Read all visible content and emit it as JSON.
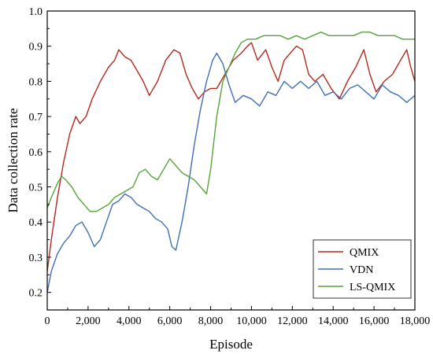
{
  "chart_data": {
    "type": "line",
    "title": "",
    "xlabel": "Episode",
    "ylabel": "Data collection rate",
    "xlim": [
      0,
      18000
    ],
    "ylim": [
      0.15,
      1.0
    ],
    "x_ticks": [
      0,
      2000,
      4000,
      6000,
      8000,
      10000,
      12000,
      14000,
      16000,
      18000
    ],
    "x_tick_labels": [
      "0",
      "2,000",
      "4,000",
      "6,000",
      "8,000",
      "10,000",
      "12,000",
      "14,000",
      "16,000",
      "18,000"
    ],
    "y_ticks": [
      0.2,
      0.3,
      0.4,
      0.5,
      0.6,
      0.7,
      0.8,
      0.9,
      1.0
    ],
    "y_tick_labels": [
      "0.2",
      "0.3",
      "0.4",
      "0.5",
      "0.6",
      "0.7",
      "0.8",
      "0.9",
      "1.0"
    ],
    "grid": false,
    "legend_position": "bottom-right",
    "series": [
      {
        "name": "QMIX",
        "color": "#b5281d",
        "x": [
          0,
          200,
          500,
          800,
          1100,
          1400,
          1600,
          1900,
          2200,
          2600,
          3000,
          3300,
          3500,
          3800,
          4100,
          4400,
          4700,
          5000,
          5400,
          5800,
          6200,
          6500,
          6800,
          7100,
          7400,
          7700,
          8000,
          8300,
          8700,
          9100,
          9500,
          9800,
          10000,
          10300,
          10700,
          11000,
          11300,
          11600,
          11900,
          12200,
          12500,
          12800,
          13100,
          13500,
          13900,
          14300,
          14700,
          15100,
          15500,
          15800,
          16100,
          16500,
          16900,
          17300,
          17600,
          17800,
          18000
        ],
        "y": [
          0.26,
          0.35,
          0.47,
          0.57,
          0.65,
          0.7,
          0.68,
          0.7,
          0.75,
          0.8,
          0.84,
          0.86,
          0.89,
          0.87,
          0.86,
          0.83,
          0.8,
          0.76,
          0.8,
          0.86,
          0.89,
          0.88,
          0.82,
          0.78,
          0.75,
          0.77,
          0.78,
          0.78,
          0.82,
          0.86,
          0.88,
          0.9,
          0.91,
          0.86,
          0.89,
          0.84,
          0.8,
          0.86,
          0.88,
          0.9,
          0.89,
          0.82,
          0.8,
          0.82,
          0.78,
          0.75,
          0.8,
          0.84,
          0.89,
          0.82,
          0.77,
          0.8,
          0.82,
          0.86,
          0.89,
          0.84,
          0.8
        ]
      },
      {
        "name": "VDN",
        "color": "#3f6fb5",
        "x": [
          0,
          200,
          500,
          800,
          1100,
          1400,
          1700,
          2000,
          2300,
          2600,
          2900,
          3200,
          3500,
          3800,
          4100,
          4400,
          4700,
          5000,
          5300,
          5600,
          5900,
          6100,
          6300,
          6600,
          6900,
          7200,
          7500,
          7800,
          8100,
          8300,
          8600,
          8900,
          9200,
          9600,
          10000,
          10400,
          10800,
          11200,
          11600,
          12000,
          12400,
          12800,
          13200,
          13600,
          14000,
          14400,
          14800,
          15200,
          15600,
          16000,
          16400,
          16800,
          17200,
          17600,
          18000
        ],
        "y": [
          0.2,
          0.26,
          0.31,
          0.34,
          0.36,
          0.39,
          0.4,
          0.37,
          0.33,
          0.35,
          0.4,
          0.45,
          0.46,
          0.48,
          0.47,
          0.45,
          0.44,
          0.43,
          0.41,
          0.4,
          0.38,
          0.33,
          0.32,
          0.4,
          0.5,
          0.62,
          0.72,
          0.8,
          0.86,
          0.88,
          0.85,
          0.79,
          0.74,
          0.76,
          0.75,
          0.73,
          0.77,
          0.76,
          0.8,
          0.78,
          0.8,
          0.78,
          0.8,
          0.76,
          0.77,
          0.75,
          0.78,
          0.79,
          0.77,
          0.75,
          0.79,
          0.77,
          0.76,
          0.74,
          0.76
        ]
      },
      {
        "name": "LS-QMIX",
        "color": "#55a43b",
        "x": [
          0,
          200,
          500,
          700,
          900,
          1200,
          1500,
          1800,
          2100,
          2400,
          2700,
          3000,
          3300,
          3600,
          3900,
          4200,
          4500,
          4800,
          5100,
          5400,
          5700,
          6000,
          6300,
          6600,
          6900,
          7200,
          7500,
          7800,
          8000,
          8300,
          8600,
          8900,
          9200,
          9500,
          9800,
          10200,
          10600,
          11000,
          11400,
          11800,
          12200,
          12600,
          13000,
          13400,
          13800,
          14200,
          14600,
          15000,
          15400,
          15800,
          16200,
          16600,
          17000,
          17400,
          17800,
          18000
        ],
        "y": [
          0.44,
          0.47,
          0.51,
          0.53,
          0.52,
          0.5,
          0.47,
          0.45,
          0.43,
          0.43,
          0.44,
          0.45,
          0.47,
          0.48,
          0.49,
          0.5,
          0.54,
          0.55,
          0.53,
          0.52,
          0.55,
          0.58,
          0.56,
          0.54,
          0.53,
          0.52,
          0.5,
          0.48,
          0.55,
          0.7,
          0.8,
          0.84,
          0.88,
          0.91,
          0.92,
          0.92,
          0.93,
          0.93,
          0.93,
          0.92,
          0.93,
          0.92,
          0.93,
          0.94,
          0.93,
          0.93,
          0.93,
          0.93,
          0.94,
          0.94,
          0.93,
          0.93,
          0.93,
          0.92,
          0.92,
          0.92
        ]
      }
    ]
  }
}
